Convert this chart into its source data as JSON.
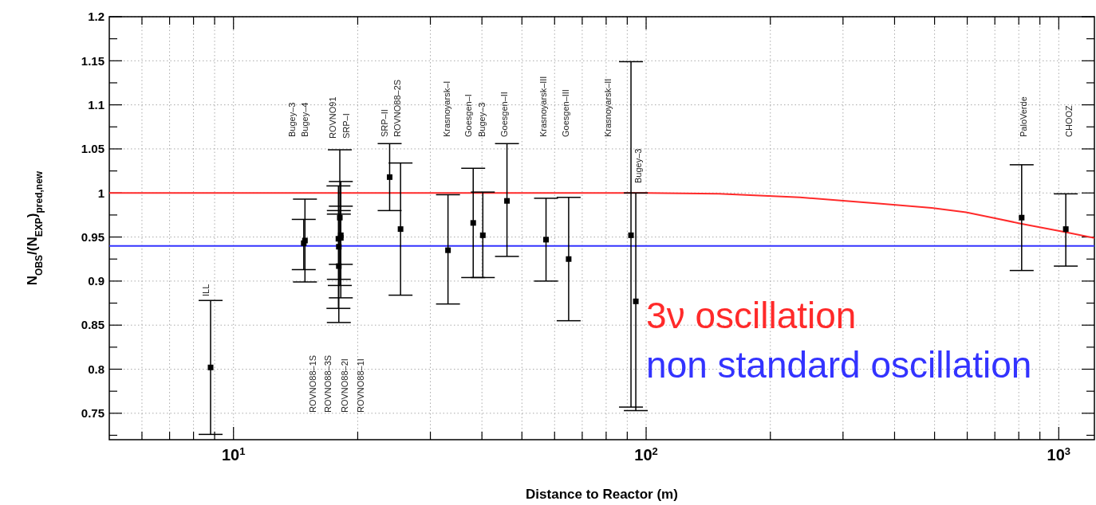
{
  "chart_data": {
    "type": "scatter",
    "xlabel": "Distance to Reactor (m)",
    "ylabel": "N$_{OBS}$/(N$_{EXP}$)$_{pred,new}$",
    "log": "x",
    "xlim": [
      5,
      1220
    ],
    "ylim": [
      0.72,
      1.2
    ],
    "xticks": [
      {
        "value": 6,
        "label": null
      },
      {
        "value": 7,
        "label": null
      },
      {
        "value": 8,
        "label": null
      },
      {
        "value": 9,
        "label": null
      },
      {
        "value": 10,
        "label": "10$^{1}$"
      },
      {
        "value": 20,
        "label": null
      },
      {
        "value": 30,
        "label": null
      },
      {
        "value": 40,
        "label": null
      },
      {
        "value": 50,
        "label": null
      },
      {
        "value": 60,
        "label": null
      },
      {
        "value": 70,
        "label": null
      },
      {
        "value": 80,
        "label": null
      },
      {
        "value": 90,
        "label": null
      },
      {
        "value": 100,
        "label": "10$^{2}$"
      },
      {
        "value": 200,
        "label": null
      },
      {
        "value": 300,
        "label": null
      },
      {
        "value": 400,
        "label": null
      },
      {
        "value": 500,
        "label": null
      },
      {
        "value": 600,
        "label": null
      },
      {
        "value": 700,
        "label": null
      },
      {
        "value": 800,
        "label": null
      },
      {
        "value": 900,
        "label": null
      },
      {
        "value": 1000,
        "label": "10$^{3}$"
      }
    ],
    "yticks": [
      {
        "value": 0.725,
        "label": null
      },
      0.75,
      {
        "value": 0.775,
        "label": null
      },
      0.8,
      {
        "value": 0.825,
        "label": null
      },
      0.85,
      {
        "value": 0.875,
        "label": null
      },
      0.9,
      {
        "value": 0.925,
        "label": null
      },
      0.95,
      {
        "value": 0.975,
        "label": null
      },
      1,
      {
        "value": 1.025,
        "label": null
      },
      1.05,
      {
        "value": 1.075,
        "label": null
      },
      1.1,
      {
        "value": 1.125,
        "label": null
      },
      1.15,
      {
        "value": 1.175,
        "label": null
      },
      1.2
    ],
    "grid": true,
    "legend": false,
    "line_style": "solid",
    "series": [
      {
        "type": "line",
        "name": "3ν oscillation",
        "color": "#ff2a2a",
        "x": [
          5,
          100,
          150,
          236,
          366,
          492,
          596,
          690,
          813,
          1028,
          1220
        ],
        "values": [
          1.0,
          1.0,
          0.999,
          0.995,
          0.988,
          0.983,
          0.978,
          0.972,
          0.965,
          0.956,
          0.949
        ]
      },
      {
        "type": "line",
        "name": "non standard oscillation",
        "color": "#3333ff",
        "x": [
          5,
          1220
        ],
        "values": [
          0.94,
          0.94
        ]
      },
      {
        "color": "#000000",
        "marker": "square",
        "x": [
          8.8,
          14.8,
          14.9,
          18.0,
          18.2,
          18.1,
          18.2,
          17.96,
          18.0,
          23.9,
          25.4,
          33.1,
          38.1,
          40.2,
          46.0,
          57.2,
          64.9,
          91.9,
          94.4,
          813,
          1040
        ],
        "values": [
          0.802,
          0.943,
          0.946,
          0.939,
          0.952,
          0.972,
          0.949,
          0.948,
          0.917,
          1.018,
          0.959,
          0.935,
          0.966,
          0.952,
          0.991,
          0.947,
          0.925,
          0.952,
          0.877,
          0.972,
          0.959
        ],
        "errors": [
          [
            0.726,
            0.878
          ],
          [
            0.913,
            0.97
          ],
          [
            0.899,
            0.993
          ],
          [
            0.902,
            0.976
          ],
          [
            0.919,
            0.985
          ],
          [
            0.895,
            1.049
          ],
          [
            0.881,
            1.013
          ],
          [
            0.869,
            1.008
          ],
          [
            0.853,
            0.98
          ],
          [
            0.98,
            1.056
          ],
          [
            0.884,
            1.034
          ],
          [
            0.874,
            0.998
          ],
          [
            0.904,
            1.028
          ],
          [
            0.904,
            1.001
          ],
          [
            0.928,
            1.056
          ],
          [
            0.9,
            0.994
          ],
          [
            0.855,
            0.995
          ],
          [
            0.757,
            1.149
          ],
          [
            0.753,
            1.0
          ],
          [
            0.912,
            1.032
          ],
          [
            0.917,
            0.999
          ]
        ]
      }
    ],
    "annotations": [
      "ILL",
      "Bugey–3",
      "Bugey–4",
      "ROVNO91",
      "SRP–I",
      "ROVNO88–1S",
      "ROVNO88–3S",
      "ROVNO88–2I",
      "ROVNO88–1I",
      "SRP–II",
      "ROVNO88–2S",
      "Krasnoyarsk–I",
      "Goesgen–I",
      "Bugey–3",
      "Goesgen–II",
      "Krasnoyarsk–III",
      "Goesgen–III",
      "Krasnoyarsk–II",
      "Bugey–3",
      "PaloVerde",
      "CHOOZ"
    ]
  }
}
